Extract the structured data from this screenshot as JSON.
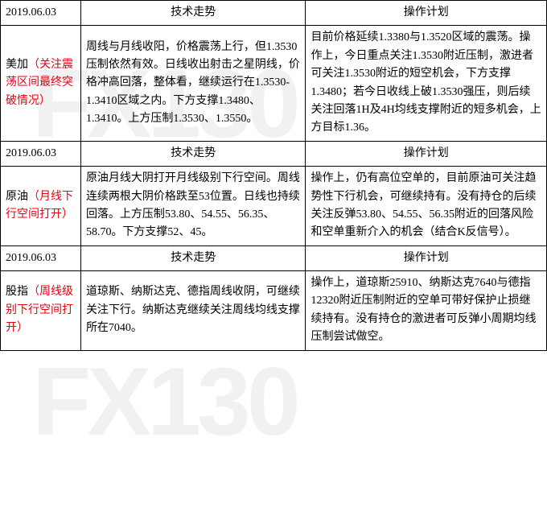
{
  "watermark": "FX130",
  "sections": [
    {
      "date": "2019.06.03",
      "tech_header": "技术走势",
      "plan_header": "操作计划",
      "label_black": "美加",
      "label_red": "（关注震荡区间最终突破情况）",
      "tech": "周线与月线收阳，价格震荡上行，但1.3530压制依然有效。日线收出射击之星阴线，价格冲高回落，整体看，继续运行在1.3530-1.3410区域之内。下方支撑1.3480、1.3410。上方压制1.3530、1.3550。",
      "plan": "目前价格延续1.3380与1.3520区域的震荡。操作上，今日重点关注1.3530附近压制，激进者可关注1.3530附近的短空机会，下方支撑1.3480；若今日收线上破1.3530强压，则后续关注回落1H及4H均线支撑附近的短多机会，上方目标1.36。"
    },
    {
      "date": "2019.06.03",
      "tech_header": "技术走势",
      "plan_header": "操作计划",
      "label_black": "原油",
      "label_red": "（月线下行空间打开）",
      "tech": "原油月线大阴打开月线级别下行空间。周线连续两根大阴价格跌至53位置。日线也持续回落。上方压制53.80、54.55、56.35、58.70。下方支撑52、45。",
      "plan": "操作上，仍有高位空单的，目前原油可关注趋势性下行机会，可继续持有。没有持仓的后续关注反弹53.80、54.55、56.35附近的回落风险和空单重新介入的机会（结合K反信号）。"
    },
    {
      "date": "2019.06.03",
      "tech_header": "技术走势",
      "plan_header": "操作计划",
      "label_black": "股指",
      "label_red": "（周线级别下行空间打开）",
      "tech": "道琼斯、纳斯达克、德指周线收阴，可继续关注下行。纳斯达克继续关注周线均线支撑所在7040。",
      "plan": "操作上，道琼斯25910、纳斯达克7640与德指12320附近压制附近的空单可带好保护止损继续持有。没有持仓的激进者可反弹小周期均线压制尝试做空。"
    }
  ],
  "colors": {
    "border": "#000000",
    "text": "#000000",
    "accent": "#e60012",
    "watermark": "rgba(200,200,200,0.25)",
    "background": "#ffffff"
  }
}
